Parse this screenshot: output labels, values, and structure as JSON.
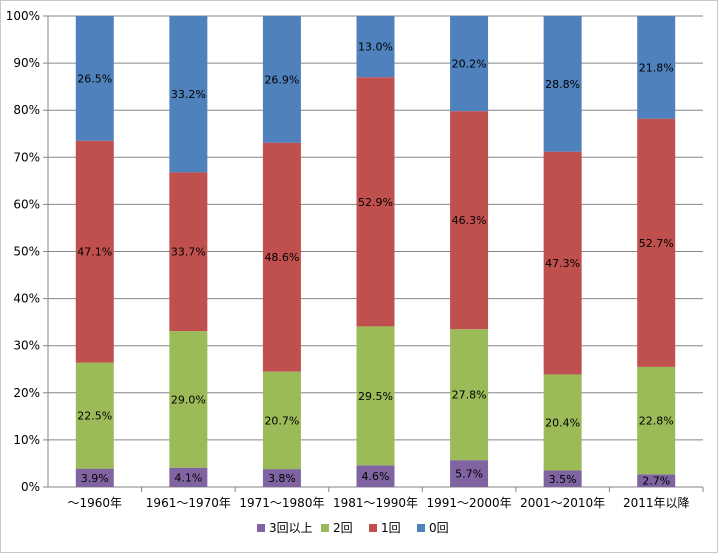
{
  "chart_data": {
    "type": "bar",
    "stacked": true,
    "percent": true,
    "categories": [
      "～1960年",
      "1961～1970年",
      "1971～1980年",
      "1981～1990年",
      "1991～2000年",
      "2001～2010年",
      "2011年以降"
    ],
    "series": [
      {
        "name": "3回以上",
        "color": "#8064a2",
        "values": [
          3.9,
          4.1,
          3.8,
          4.6,
          5.7,
          3.5,
          2.7
        ],
        "labels": [
          "3.9%",
          "4.1%",
          "3.8%",
          "4.6%",
          "5.7%",
          "3.5%",
          "2.7%"
        ]
      },
      {
        "name": "2回",
        "color": "#9bbb59",
        "values": [
          22.5,
          29.0,
          20.7,
          29.5,
          27.8,
          20.4,
          22.8
        ],
        "labels": [
          "22.5%",
          "29.0%",
          "20.7%",
          "29.5%",
          "27.8%",
          "20.4%",
          "22.8%"
        ]
      },
      {
        "name": "1回",
        "color": "#c0504d",
        "values": [
          47.1,
          33.7,
          48.6,
          52.9,
          46.3,
          47.3,
          52.7
        ],
        "labels": [
          "47.1%",
          "33.7%",
          "48.6%",
          "52.9%",
          "46.3%",
          "47.3%",
          "52.7%"
        ]
      },
      {
        "name": "0回",
        "color": "#4f81bd",
        "values": [
          26.5,
          33.2,
          26.9,
          13.0,
          20.2,
          28.8,
          21.8
        ],
        "labels": [
          "26.5%",
          "33.2%",
          "26.9%",
          "13.0%",
          "20.2%",
          "28.8%",
          "21.8%"
        ]
      }
    ],
    "ylim": [
      0,
      100
    ],
    "y_ticks": [
      "0%",
      "10%",
      "20%",
      "30%",
      "40%",
      "50%",
      "60%",
      "70%",
      "80%",
      "90%",
      "100%"
    ],
    "grid": true,
    "legend_position": "bottom",
    "title": "",
    "xlabel": "",
    "ylabel": ""
  }
}
